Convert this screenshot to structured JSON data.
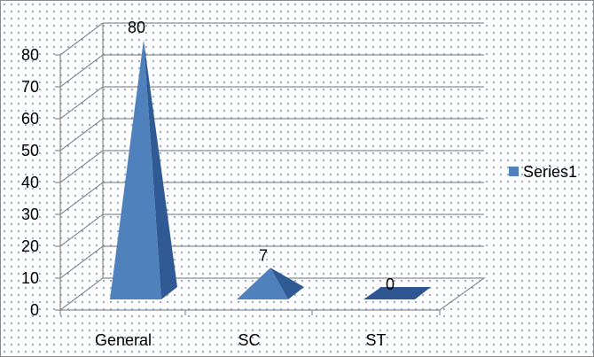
{
  "chart_data": {
    "type": "bar",
    "bar_shape": "3d-pyramid",
    "categories": [
      "General",
      "SC",
      "ST"
    ],
    "series": [
      {
        "name": "Series1",
        "values": [
          80,
          7,
          0
        ],
        "color": "#4f81bd"
      }
    ],
    "data_labels": [
      "80",
      "7",
      "0"
    ],
    "y_ticks": [
      "0",
      "10",
      "20",
      "30",
      "40",
      "50",
      "60",
      "70",
      "80"
    ],
    "ylim": [
      0,
      85
    ],
    "grid": true,
    "legend": "right",
    "background": "dotted"
  }
}
